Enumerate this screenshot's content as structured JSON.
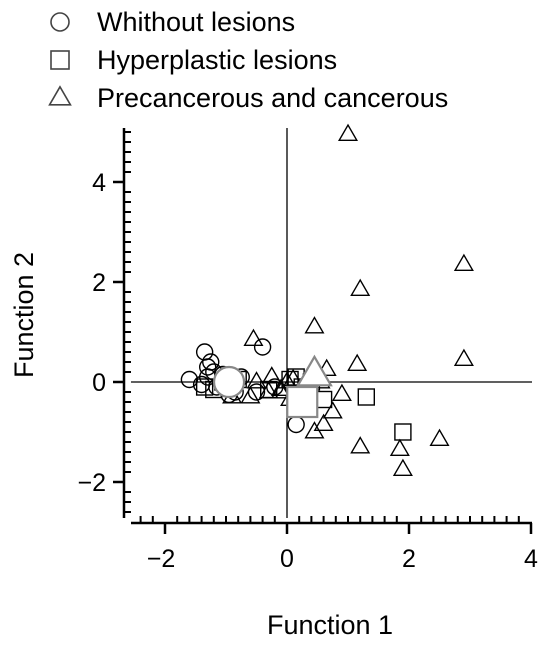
{
  "chart_data": {
    "type": "scatter",
    "title": "",
    "xlabel": "Function 1",
    "ylabel": "Function 2",
    "xlim": [
      -2.5,
      4
    ],
    "ylim": [
      -2.7,
      5
    ],
    "xticks": [
      -2,
      0,
      2,
      4
    ],
    "yticks": [
      -2,
      0,
      2,
      4
    ],
    "zero_lines": true,
    "legend_position": "top-left",
    "series": [
      {
        "name": "Whithout lesions",
        "marker": "circle",
        "color": "#000000",
        "points": [
          [
            -1.6,
            0.05
          ],
          [
            -1.35,
            0.6
          ],
          [
            -1.3,
            0.3
          ],
          [
            -1.25,
            0.4
          ],
          [
            -1.4,
            -0.05
          ],
          [
            -1.3,
            0.1
          ],
          [
            -1.2,
            0.2
          ],
          [
            -1.15,
            -0.1
          ],
          [
            -1.05,
            0.15
          ],
          [
            -1.0,
            -0.05
          ],
          [
            -0.95,
            -0.25
          ],
          [
            -0.85,
            -0.2
          ],
          [
            -0.75,
            0.1
          ],
          [
            -0.5,
            -0.2
          ],
          [
            -0.4,
            0.7
          ],
          [
            -0.2,
            -0.1
          ],
          [
            0.15,
            -0.85
          ]
        ],
        "centroid": [
          -0.95,
          0.0
        ]
      },
      {
        "name": "Hyperplastic lesions",
        "marker": "square",
        "color": "#000000",
        "points": [
          [
            -1.35,
            -0.1
          ],
          [
            -1.2,
            -0.15
          ],
          [
            -1.05,
            0.0
          ],
          [
            -0.9,
            -0.05
          ],
          [
            -0.8,
            0.05
          ],
          [
            -0.3,
            -0.15
          ],
          [
            0.05,
            0.05
          ],
          [
            0.15,
            0.1
          ],
          [
            0.25,
            -0.1
          ],
          [
            0.4,
            0.0
          ],
          [
            0.6,
            -0.35
          ],
          [
            1.3,
            -0.3
          ],
          [
            1.9,
            -1.0
          ]
        ],
        "centroid": [
          0.25,
          -0.4
        ]
      },
      {
        "name": "Precancerous and cancerous",
        "marker": "triangle",
        "color": "#000000",
        "points": [
          [
            1.0,
            4.95
          ],
          [
            2.9,
            2.35
          ],
          [
            1.2,
            1.85
          ],
          [
            0.45,
            1.1
          ],
          [
            -0.55,
            0.85
          ],
          [
            1.15,
            0.35
          ],
          [
            2.9,
            0.45
          ],
          [
            -0.25,
            0.1
          ],
          [
            0.1,
            0.05
          ],
          [
            0.65,
            0.25
          ],
          [
            -0.5,
            0.0
          ],
          [
            -0.3,
            -0.2
          ],
          [
            -0.1,
            -0.2
          ],
          [
            0.0,
            0.0
          ],
          [
            0.05,
            -0.35
          ],
          [
            0.3,
            0.0
          ],
          [
            0.55,
            0.0
          ],
          [
            0.9,
            -0.25
          ],
          [
            0.75,
            -0.6
          ],
          [
            0.6,
            -0.85
          ],
          [
            0.45,
            -1.0
          ],
          [
            1.2,
            -1.3
          ],
          [
            1.85,
            -1.35
          ],
          [
            1.9,
            -1.75
          ],
          [
            2.5,
            -1.15
          ],
          [
            -0.9,
            -0.3
          ],
          [
            -0.6,
            -0.3
          ],
          [
            -0.1,
            -0.15
          ]
        ],
        "centroid": [
          0.45,
          0.15
        ]
      }
    ]
  }
}
